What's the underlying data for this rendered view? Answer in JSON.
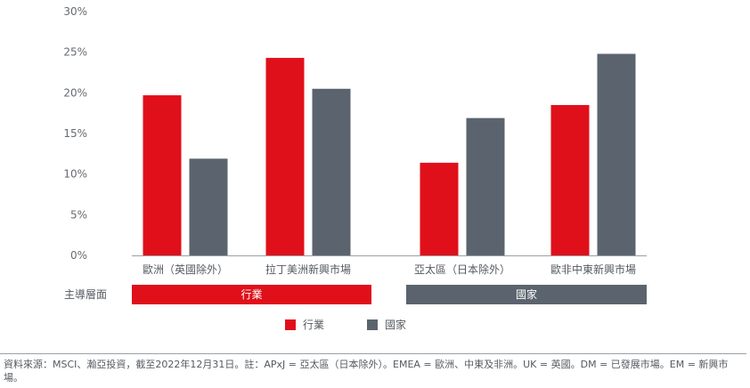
{
  "chart_data": {
    "type": "bar",
    "y_ticks": [
      "30%",
      "25%",
      "20%",
      "15%",
      "10%",
      "5%",
      "0%"
    ],
    "ylim": [
      0,
      30
    ],
    "grid": false,
    "categories": [
      "歐洲（英國除外）",
      "拉丁美洲新興市場",
      "亞太區（日本除外）",
      "歐非中東新興市場"
    ],
    "series": [
      {
        "name": "行業",
        "color": "#e0101a",
        "values": [
          19.7,
          24.3,
          11.4,
          18.5
        ]
      },
      {
        "name": "國家",
        "color": "#5b646e",
        "values": [
          11.9,
          20.5,
          16.9,
          24.8
        ]
      }
    ],
    "dimension_row": {
      "label": "主導層面",
      "groups": [
        {
          "text": "行業",
          "color": "#e0101a"
        },
        {
          "text": "國家",
          "color": "#5b646e"
        }
      ]
    },
    "legend_position": "bottom",
    "footnote": "資料來源：MSCI、瀚亞投資，截至2022年12月31日。註：APxJ = 亞太區（日本除外）。EMEA = 歐洲、中東及非洲。UK = 英國。DM = 已發展市場。EM = 新興市場。"
  }
}
